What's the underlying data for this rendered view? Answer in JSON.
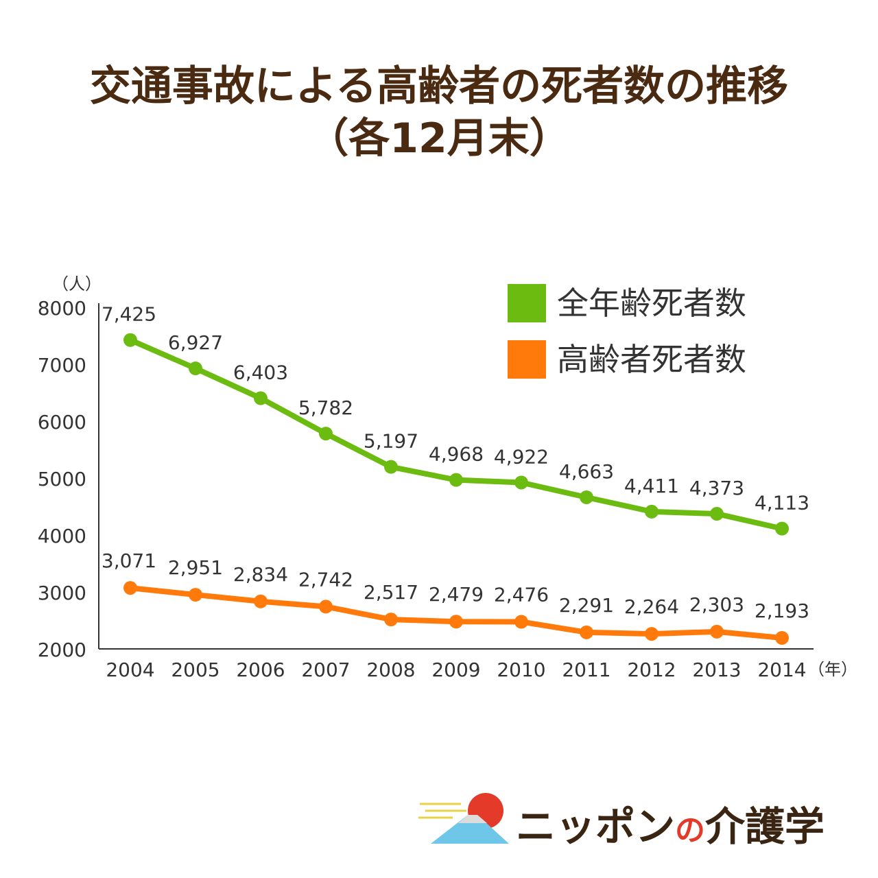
{
  "title": {
    "line1": "交通事故による高齢者の死者数の推移",
    "line2": "（各12月末）"
  },
  "chart_data": {
    "type": "line",
    "x": [
      "2004",
      "2005",
      "2006",
      "2007",
      "2008",
      "2009",
      "2010",
      "2011",
      "2012",
      "2013",
      "2014"
    ],
    "ylim": [
      2000,
      8000
    ],
    "yticks": [
      "2000",
      "3000",
      "4000",
      "5000",
      "6000",
      "7000",
      "8000"
    ],
    "yunit": "（人）",
    "xunit": "（年）",
    "series": [
      {
        "name": "全年齢死者数",
        "color": "#6cbb10",
        "values": [
          7425,
          6927,
          6403,
          5782,
          5197,
          4968,
          4922,
          4663,
          4411,
          4373,
          4113
        ],
        "labels": [
          "7,425",
          "6,927",
          "6,403",
          "5,782",
          "5,197",
          "4,968",
          "4,922",
          "4,663",
          "4,411",
          "4,373",
          "4,113"
        ]
      },
      {
        "name": "高齢者死者数",
        "color": "#ff7a0a",
        "values": [
          3071,
          2951,
          2834,
          2742,
          2517,
          2479,
          2476,
          2291,
          2264,
          2303,
          2193
        ],
        "labels": [
          "3,071",
          "2,951",
          "2,834",
          "2,742",
          "2,517",
          "2,479",
          "2,476",
          "2,291",
          "2,264",
          "2,303",
          "2,193"
        ]
      }
    ],
    "legend_position": "top-right"
  },
  "logo": {
    "text_main": "ニッポン",
    "text_no": "の",
    "text_end": "介護学",
    "sun_color": "#e33a2a",
    "mountain_color": "#6ec6e8"
  }
}
